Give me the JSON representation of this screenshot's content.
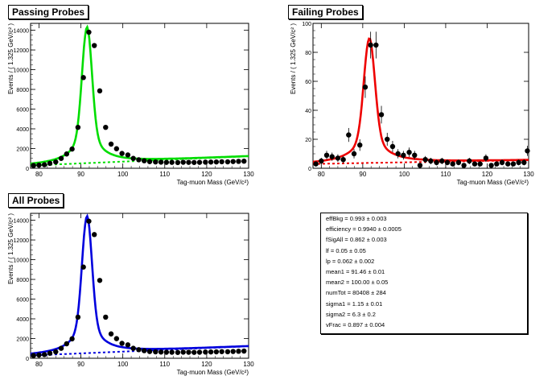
{
  "chart_data": [
    {
      "id": "pass",
      "type": "scatter",
      "title": "Passing Probes",
      "xlabel": "Tag-muon Mass (GeV/c²)",
      "ylabel": "Events / ( 1.325 GeV/c² )",
      "xlim": [
        78,
        130
      ],
      "ylim": [
        0,
        14700
      ],
      "xticks": [
        80,
        90,
        100,
        110,
        120,
        130
      ],
      "yticks": [
        0,
        2000,
        4000,
        6000,
        8000,
        10000,
        12000,
        14000
      ],
      "ytick_labels": [
        "0",
        "2000",
        "4000",
        "6000",
        "8000",
        "10000",
        "12000",
        "14000"
      ],
      "fit_color": "#00dd00",
      "bkg_color": "#00dd00",
      "fit_model": {
        "mean": 91.46,
        "sigma": 1.15,
        "peak": 13800,
        "base": 280,
        "slope": 18,
        "tail": 3.5
      },
      "x": [
        78.7,
        80.0,
        81.3,
        82.6,
        84.0,
        85.3,
        86.6,
        87.9,
        89.3,
        90.6,
        91.9,
        93.2,
        94.5,
        95.9,
        97.2,
        98.5,
        99.8,
        101.2,
        102.5,
        103.8,
        105.1,
        106.4,
        107.8,
        109.1,
        110.4,
        111.7,
        113.1,
        114.4,
        115.7,
        117.0,
        118.3,
        119.7,
        121.0,
        122.3,
        123.6,
        125.0,
        126.3,
        127.6,
        128.9
      ],
      "y": [
        280,
        320,
        360,
        500,
        640,
        1000,
        1450,
        1950,
        4150,
        9200,
        13800,
        12450,
        7850,
        4150,
        2450,
        1980,
        1500,
        1350,
        1000,
        860,
        760,
        670,
        640,
        620,
        600,
        600,
        580,
        610,
        600,
        590,
        600,
        620,
        630,
        640,
        660,
        650,
        680,
        700,
        720
      ]
    },
    {
      "id": "fail",
      "type": "scatter",
      "title": "Failing Probes",
      "xlabel": "Tag-muon Mass (GeV/c²)",
      "ylabel": "Events / ( 1.325 GeV/c² )",
      "xlim": [
        78,
        130
      ],
      "ylim": [
        0,
        100
      ],
      "xticks": [
        80,
        90,
        100,
        110,
        120,
        130
      ],
      "yticks": [
        0,
        20,
        40,
        60,
        80,
        100
      ],
      "ytick_labels": [
        "0",
        "20",
        "40",
        "60",
        "80",
        "100"
      ],
      "fit_color": "#ee0000",
      "bkg_color": "#ee0000",
      "fit_model": {
        "mean": 91.6,
        "sigma": 1.3,
        "peak": 86,
        "base": 3,
        "slope": 0.05,
        "tail": 4
      },
      "x": [
        78.7,
        80.0,
        81.3,
        82.6,
        84.0,
        85.3,
        86.6,
        87.9,
        89.3,
        90.6,
        91.9,
        93.2,
        94.5,
        95.9,
        97.2,
        98.5,
        99.8,
        101.2,
        102.5,
        103.8,
        105.1,
        106.4,
        107.8,
        109.1,
        110.4,
        111.7,
        113.1,
        114.4,
        115.7,
        117.0,
        118.3,
        119.7,
        121.0,
        122.3,
        123.6,
        125.0,
        126.3,
        127.6,
        128.9,
        129.7
      ],
      "y": [
        3,
        5,
        9,
        8,
        7,
        6,
        23,
        10,
        16,
        56,
        85,
        85,
        37,
        20,
        15,
        10,
        9,
        11,
        9,
        2,
        6,
        5,
        4,
        5,
        4,
        3,
        4,
        2,
        5,
        3,
        3,
        7,
        2,
        3,
        4,
        3,
        3,
        4,
        4,
        12
      ]
    },
    {
      "id": "all",
      "type": "scatter",
      "title": "All Probes",
      "xlabel": "Tag-muon Mass (GeV/c²)",
      "ylabel": "Events / ( 1.325 GeV/c² )",
      "xlim": [
        78,
        130
      ],
      "ylim": [
        0,
        14700
      ],
      "xticks": [
        80,
        90,
        100,
        110,
        120,
        130
      ],
      "yticks": [
        0,
        2000,
        4000,
        6000,
        8000,
        10000,
        12000,
        14000
      ],
      "ytick_labels": [
        "0",
        "2000",
        "4000",
        "6000",
        "8000",
        "10000",
        "12000",
        "14000"
      ],
      "fit_color": "#0000dd",
      "bkg_color": "#0000dd",
      "fit_model": {
        "mean": 91.46,
        "sigma": 1.15,
        "peak": 13900,
        "base": 280,
        "slope": 18,
        "tail": 3.5
      },
      "x": [
        78.7,
        80.0,
        81.3,
        82.6,
        84.0,
        85.3,
        86.6,
        87.9,
        89.3,
        90.6,
        91.9,
        93.2,
        94.5,
        95.9,
        97.2,
        98.5,
        99.8,
        101.2,
        102.5,
        103.8,
        105.1,
        106.4,
        107.8,
        109.1,
        110.4,
        111.7,
        113.1,
        114.4,
        115.7,
        117.0,
        118.3,
        119.7,
        121.0,
        122.3,
        123.6,
        125.0,
        126.3,
        127.6,
        128.9
      ],
      "y": [
        280,
        330,
        370,
        510,
        650,
        1010,
        1470,
        1970,
        4170,
        9250,
        13900,
        12550,
        7900,
        4170,
        2470,
        1990,
        1510,
        1360,
        1010,
        870,
        770,
        680,
        650,
        630,
        610,
        610,
        590,
        620,
        610,
        600,
        610,
        630,
        640,
        650,
        670,
        660,
        690,
        710,
        730
      ]
    }
  ],
  "params": [
    {
      "name": "effBkg",
      "value": "0.993",
      "err": "0.003"
    },
    {
      "name": "efficiency",
      "value": "0.9940",
      "err": "0.0005"
    },
    {
      "name": "fSigAll",
      "value": "0.862",
      "err": "0.003"
    },
    {
      "name": "lf",
      "value": "0.05",
      "err": "0.05"
    },
    {
      "name": "lp",
      "value": "0.062",
      "err": "0.002"
    },
    {
      "name": "mean1",
      "value": "91.46",
      "err": "0.01"
    },
    {
      "name": "mean2",
      "value": "100.00",
      "err": "0.05"
    },
    {
      "name": "numTot",
      "value": "80408",
      "err": "284"
    },
    {
      "name": "sigma1",
      "value": "1.15",
      "err": "0.01"
    },
    {
      "name": "sigma2",
      "value": "6.3",
      "err": "0.2"
    },
    {
      "name": "vFrac",
      "value": "0.897",
      "err": "0.004"
    }
  ]
}
